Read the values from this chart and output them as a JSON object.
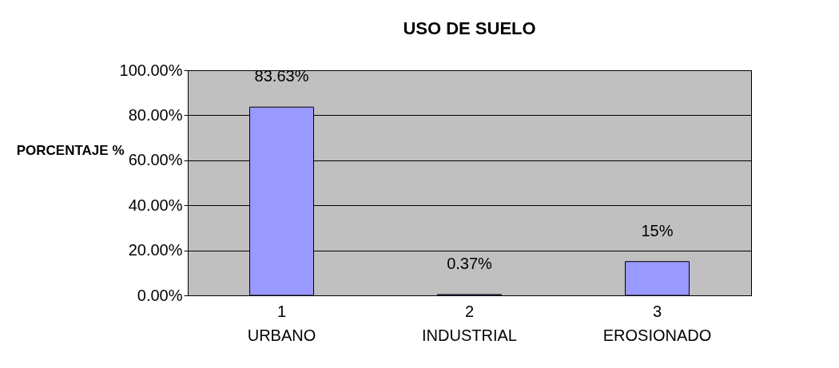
{
  "chart_data": {
    "type": "bar",
    "title": "USO DE SUELO",
    "ylabel": "PORCENTAJE %",
    "categories": [
      "1\nURBANO",
      "2\nINDUSTRIAL",
      "3\nEROSIONADO"
    ],
    "values": [
      83.63,
      0.37,
      15
    ],
    "value_labels": [
      "83.63%",
      "0.37%",
      "15%"
    ],
    "color": "#9999ff",
    "ylim": [
      0,
      100
    ],
    "yticks": [
      {
        "value": 0,
        "label": "0.00%"
      },
      {
        "value": 20,
        "label": "20.00%"
      },
      {
        "value": 40,
        "label": "40.00%"
      },
      {
        "value": 60,
        "label": "60.00%"
      },
      {
        "value": 80,
        "label": "80.00%"
      },
      {
        "value": 100,
        "label": "100.00%"
      }
    ],
    "grid": "y"
  }
}
